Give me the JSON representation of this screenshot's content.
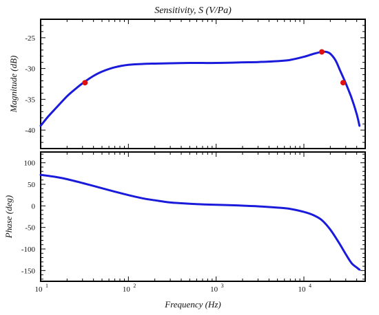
{
  "chart_data": [
    {
      "type": "line",
      "title": "Sensitivity, S (V/Pa)",
      "xlabel": "",
      "ylabel": "Magnitude (dB)",
      "xscale": "log",
      "xlim": [
        10,
        50000
      ],
      "ylim": [
        -43,
        -22
      ],
      "yticks": [
        -25,
        -30,
        -35,
        -40
      ],
      "grid": false,
      "series": [
        {
          "color": "#1a1adb",
          "x": [
            10,
            12,
            15,
            20,
            25,
            30,
            40,
            50,
            70,
            100,
            150,
            200,
            300,
            500,
            700,
            1000,
            1500,
            2000,
            3000,
            5000,
            7000,
            10000,
            13000,
            16000,
            18000,
            20000,
            23000,
            26000,
            30000,
            35000,
            40000,
            43000
          ],
          "y": [
            -39.3,
            -37.9,
            -36.4,
            -34.5,
            -33.3,
            -32.4,
            -31.2,
            -30.5,
            -29.8,
            -29.4,
            -29.25,
            -29.2,
            -29.15,
            -29.1,
            -29.1,
            -29.1,
            -29.05,
            -29.0,
            -28.95,
            -28.8,
            -28.6,
            -28.1,
            -27.6,
            -27.3,
            -27.3,
            -27.6,
            -28.7,
            -30.4,
            -32.4,
            -34.8,
            -37.4,
            -39.3
          ]
        }
      ],
      "markers": {
        "color": "#e01010",
        "x": [
          32,
          16000,
          28000
        ],
        "y": [
          -32.3,
          -27.3,
          -32.3
        ]
      }
    },
    {
      "type": "line",
      "xlabel": "Frequency (Hz)",
      "ylabel": "Phase (deg)",
      "xscale": "log",
      "xlim": [
        10,
        50000
      ],
      "ylim": [
        -175,
        125
      ],
      "yticks": [
        100,
        50,
        0,
        -50,
        -100,
        -150
      ],
      "xticks": [
        {
          "base": "10",
          "exp": "1"
        },
        {
          "base": "10",
          "exp": "2"
        },
        {
          "base": "10",
          "exp": "3"
        },
        {
          "base": "10",
          "exp": "4"
        }
      ],
      "grid": false,
      "series": [
        {
          "color": "#1a1adb",
          "x": [
            10,
            15,
            20,
            30,
            50,
            70,
            100,
            150,
            200,
            300,
            500,
            700,
            1000,
            1500,
            2000,
            3000,
            5000,
            7000,
            10000,
            13000,
            16000,
            20000,
            25000,
            30000,
            35000,
            40000,
            43000
          ],
          "y": [
            72,
            67,
            62,
            53,
            41,
            33,
            25,
            17,
            13,
            8,
            5,
            3.5,
            2.5,
            1.5,
            0.5,
            -1,
            -4,
            -7,
            -14,
            -22,
            -33,
            -55,
            -85,
            -112,
            -133,
            -143,
            -148
          ]
        }
      ]
    }
  ]
}
